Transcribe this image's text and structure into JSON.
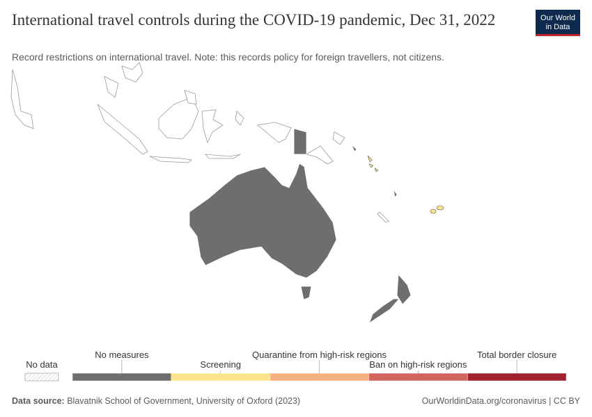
{
  "header": {
    "title": "International travel controls during the COVID-19 pandemic, Dec 31, 2022",
    "subtitle": "Record restrictions on international travel. Note: this records policy for foreign travellers, not citizens.",
    "logo": [
      "Our World",
      "in Data"
    ]
  },
  "legend": {
    "no_data": "No data",
    "items": [
      {
        "label": "No measures",
        "color": "#6e6e6e"
      },
      {
        "label": "Screening",
        "color": "#fbe48c"
      },
      {
        "label": "Quarantine from high-risk regions",
        "color": "#f4b183"
      },
      {
        "label": "Ban on high-risk regions",
        "color": "#d1655e"
      },
      {
        "label": "Total border closure",
        "color": "#a0222e"
      }
    ]
  },
  "footer": {
    "source_label": "Data source:",
    "source": "Blavatnik School of Government, University of Oxford (2023)",
    "link": "OurWorldinData.org/coronavirus | CC BY"
  }
}
